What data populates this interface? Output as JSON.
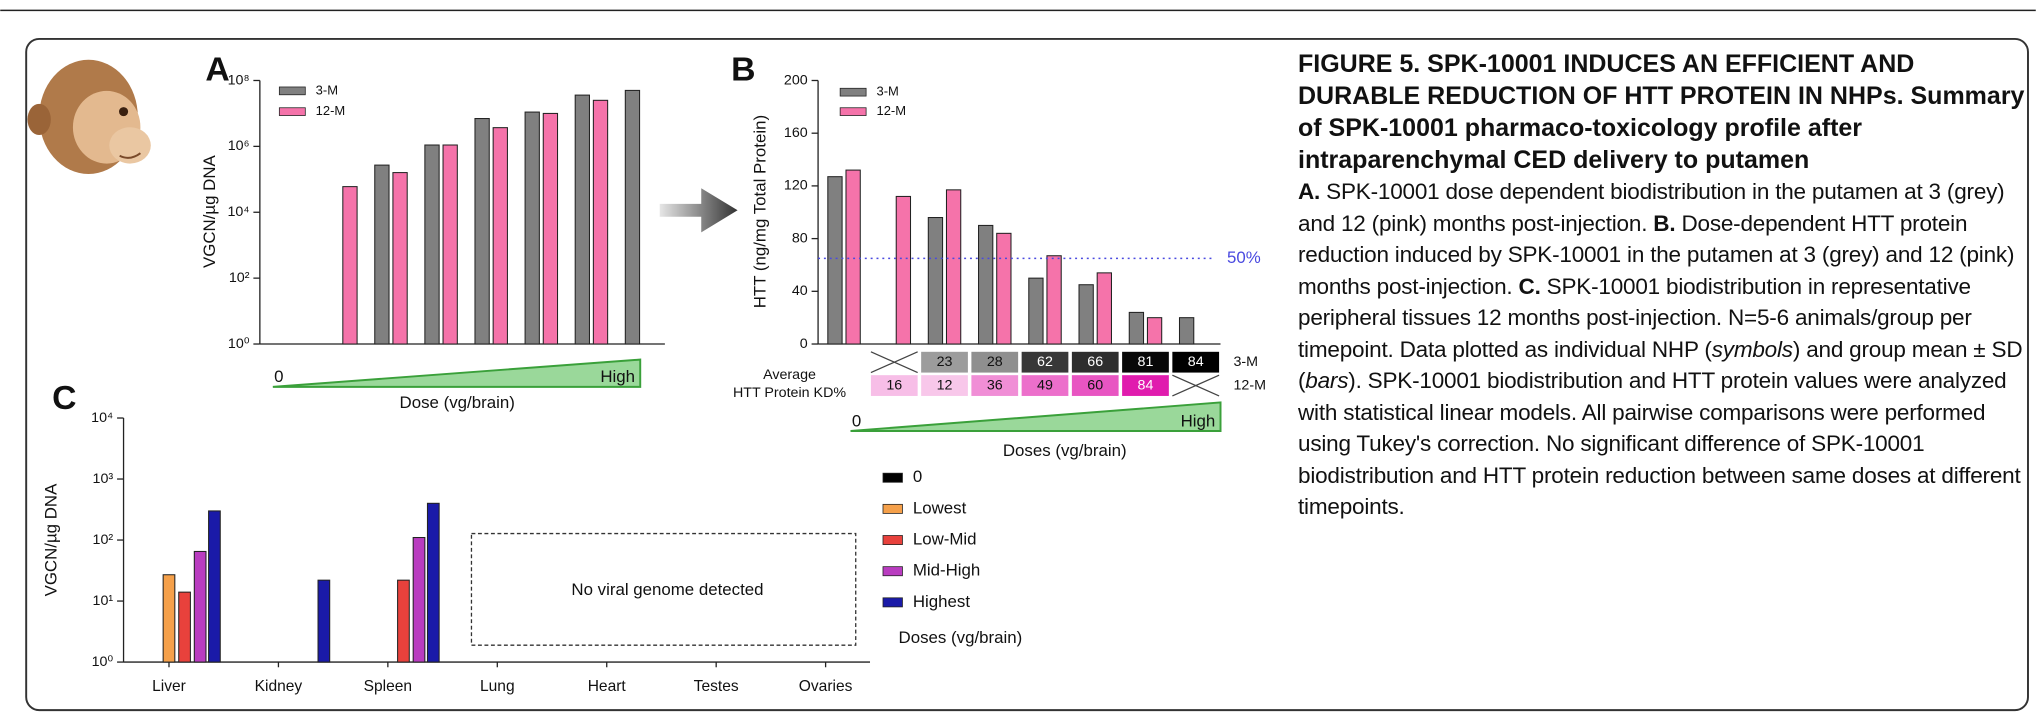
{
  "chart_data": [
    {
      "type": "bar",
      "panel": "A",
      "y_label": "VGCN/µg DNA",
      "log_scale": true,
      "ylim": [
        1,
        100000000
      ],
      "yticks": [
        {
          "value": 1,
          "label": "10⁰"
        },
        {
          "value": 100,
          "label": "10²"
        },
        {
          "value": 10000,
          "label": "10⁴"
        },
        {
          "value": 1000000,
          "label": "10⁶"
        },
        {
          "value": 100000000,
          "label": "10⁸"
        }
      ],
      "categories": [
        null,
        null,
        null,
        null,
        null,
        null,
        null
      ],
      "series": [
        {
          "name": "3-M",
          "color": "#808080",
          "values": [
            null,
            270000,
            1100000,
            7000000,
            11000000,
            36000000,
            50000000
          ]
        },
        {
          "name": "12-M",
          "color": "#f573aa",
          "values": [
            60000,
            160000,
            1100000,
            3700000,
            10000000,
            25000000,
            null
          ]
        }
      ],
      "dose_axis": {
        "start": "0",
        "end": "High",
        "label": "Dose (vg/brain)"
      }
    },
    {
      "type": "bar",
      "panel": "B",
      "y_label": "HTT (ng/mg Total Protein)",
      "log_scale": false,
      "ylim": [
        0,
        200
      ],
      "yticks": [
        0,
        40,
        80,
        120,
        160,
        200
      ],
      "categories": [
        null,
        null,
        null,
        null,
        null,
        null,
        null,
        null
      ],
      "series": [
        {
          "name": "3-M",
          "color": "#808080",
          "values": [
            127,
            null,
            96,
            90,
            50,
            45,
            24,
            20
          ]
        },
        {
          "name": "12-M",
          "color": "#f573aa",
          "values": [
            132,
            112,
            117,
            84,
            67,
            54,
            20,
            null
          ]
        }
      ],
      "reference_line": {
        "value": 65,
        "label": "50%",
        "color": "#4a4ae0"
      },
      "kd_table": {
        "title": [
          "Average",
          "HTT Protein KD%"
        ],
        "rows": [
          {
            "name": "3-M",
            "values": [
              null,
              23,
              28,
              62,
              66,
              81,
              84
            ]
          },
          {
            "name": "12-M",
            "values": [
              16,
              12,
              36,
              49,
              60,
              84,
              null
            ]
          }
        ]
      },
      "dose_axis": {
        "start": "0",
        "end": "High",
        "label": "Doses (vg/brain)"
      }
    },
    {
      "type": "bar",
      "panel": "C",
      "y_label": "VGCN/µg DNA",
      "log_scale": true,
      "ylim": [
        1,
        10000
      ],
      "yticks": [
        {
          "value": 1,
          "label": "10⁰"
        },
        {
          "value": 10,
          "label": "10¹"
        },
        {
          "value": 100,
          "label": "10²"
        },
        {
          "value": 1000,
          "label": "10³"
        },
        {
          "value": 10000,
          "label": "10⁴"
        }
      ],
      "categories": [
        "Liver",
        "Kidney",
        "Spleen",
        "Lung",
        "Heart",
        "Testes",
        "Ovaries"
      ],
      "series": [
        {
          "name": "0",
          "color": "#000000",
          "values": [
            null,
            null,
            null,
            null,
            null,
            null,
            null
          ]
        },
        {
          "name": "Lowest",
          "color": "#f5a04a",
          "values": [
            27,
            null,
            null,
            null,
            null,
            null,
            null
          ]
        },
        {
          "name": "Low-Mid",
          "color": "#e8413c",
          "values": [
            14,
            null,
            22,
            null,
            null,
            null,
            null
          ]
        },
        {
          "name": "Mid-High",
          "color": "#b93cc0",
          "values": [
            65,
            null,
            110,
            null,
            null,
            null,
            null
          ]
        },
        {
          "name": "Highest",
          "color": "#1a1aa8",
          "values": [
            300,
            22,
            400,
            null,
            null,
            null,
            null
          ]
        }
      ],
      "annotation": "No viral genome detected",
      "legend_title": "Doses (vg/brain)"
    }
  ],
  "caption": {
    "title": "FIGURE 5. SPK-10001 INDUCES AN EFFICIENT AND DURABLE REDUCTION OF HTT PROTEIN IN NHPs. Summary of SPK-10001 pharmaco-toxicology profile after intraparenchymal CED delivery to putamen",
    "body": [
      "A.",
      " SPK-10001 dose dependent biodistribution in the putamen at 3 (grey) and 12 (pink) months post-injection. ",
      "B.",
      " Dose-dependent HTT protein reduction  induced by SPK-10001 in the putamen at 3 (grey) and 12 (pink) months post-injection. ",
      "C.",
      " SPK-10001 biodistribution in representative peripheral tissues 12 months post-injection. N=5-6 animals/group per timepoint. Data plotted as individual NHP (",
      "symbols",
      ") and group mean ± SD (",
      "bars",
      "). SPK-10001 biodistribution and HTT protein values were analyzed with statistical linear models. All pairwise comparisons were performed using Tukey's correction. No significant difference of SPK-10001 biodistribution and HTT protein reduction between same doses at different timepoints."
    ]
  }
}
